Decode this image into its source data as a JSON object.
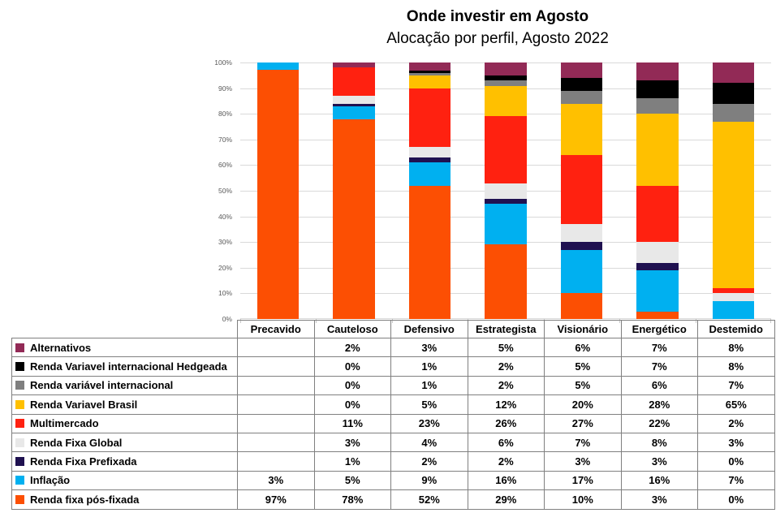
{
  "header": {
    "title": "Onde investir em Agosto",
    "subtitle": "Alocação por perfil, Agosto 2022"
  },
  "colors": {
    "gridline": "#d9d9d9",
    "axis_label": "#595959",
    "table_border": "#808080"
  },
  "chart_data": {
    "type": "bar",
    "stacked": true,
    "stacked_to_100_percent": true,
    "title": "Onde investir em Agosto",
    "subtitle": "Alocação por perfil, Agosto 2022",
    "categories": [
      "Precavido",
      "Cauteloso",
      "Defensivo",
      "Estrategista",
      "Visionário",
      "Energético",
      "Destemido"
    ],
    "y_axis": {
      "min": 0,
      "max": 100,
      "tick_step": 10,
      "tick_labels": [
        "0%",
        "10%",
        "20%",
        "30%",
        "40%",
        "50%",
        "60%",
        "70%",
        "80%",
        "90%",
        "100%"
      ],
      "grid": true
    },
    "legend_position": "left-of-table-rows",
    "series": [
      {
        "name": "Alternativos",
        "color": "#922a56",
        "values": [
          0,
          2,
          3,
          5,
          6,
          7,
          8
        ]
      },
      {
        "name": "Renda Variavel internacional Hedgeada",
        "color": "#000000",
        "values": [
          0,
          0,
          1,
          2,
          5,
          7,
          8
        ]
      },
      {
        "name": "Renda variável internacional",
        "color": "#7f7f7f",
        "values": [
          0,
          0,
          1,
          2,
          5,
          6,
          7
        ]
      },
      {
        "name": "Renda Variavel Brasil",
        "color": "#ffc000",
        "values": [
          0,
          0,
          5,
          12,
          20,
          28,
          65
        ]
      },
      {
        "name": "Multimercado",
        "color": "#ff2110",
        "values": [
          0,
          11,
          23,
          26,
          27,
          22,
          2
        ]
      },
      {
        "name": "Renda Fixa Global",
        "color": "#e8e8e8",
        "values": [
          0,
          3,
          4,
          6,
          7,
          8,
          3
        ]
      },
      {
        "name": "Renda Fixa Prefixada",
        "color": "#1f1150",
        "values": [
          0,
          1,
          2,
          2,
          3,
          3,
          0
        ]
      },
      {
        "name": "Inflação",
        "color": "#00b0f0",
        "values": [
          3,
          5,
          9,
          16,
          17,
          16,
          7
        ]
      },
      {
        "name": "Renda fixa pós-fixada",
        "color": "#fc4f03",
        "values": [
          97,
          78,
          52,
          29,
          10,
          3,
          0
        ]
      }
    ]
  },
  "table": {
    "columns": [
      "Precavido",
      "Cauteloso",
      "Defensivo",
      "Estrategista",
      "Visionário",
      "Energético",
      "Destemido"
    ],
    "rows": [
      {
        "label": "Alternativos",
        "color": "#922a56",
        "cells": [
          "",
          "2%",
          "3%",
          "5%",
          "6%",
          "7%",
          "8%"
        ]
      },
      {
        "label": "Renda Variavel internacional Hedgeada",
        "color": "#000000",
        "cells": [
          "",
          "0%",
          "1%",
          "2%",
          "5%",
          "7%",
          "8%"
        ]
      },
      {
        "label": "Renda variável internacional",
        "color": "#7f7f7f",
        "cells": [
          "",
          "0%",
          "1%",
          "2%",
          "5%",
          "6%",
          "7%"
        ]
      },
      {
        "label": "Renda Variavel Brasil",
        "color": "#ffc000",
        "cells": [
          "",
          "0%",
          "5%",
          "12%",
          "20%",
          "28%",
          "65%"
        ]
      },
      {
        "label": "Multimercado",
        "color": "#ff2110",
        "cells": [
          "",
          "11%",
          "23%",
          "26%",
          "27%",
          "22%",
          "2%"
        ]
      },
      {
        "label": "Renda Fixa Global",
        "color": "#e8e8e8",
        "cells": [
          "",
          "3%",
          "4%",
          "6%",
          "7%",
          "8%",
          "3%"
        ]
      },
      {
        "label": "Renda Fixa Prefixada",
        "color": "#1f1150",
        "cells": [
          "",
          "1%",
          "2%",
          "2%",
          "3%",
          "3%",
          "0%"
        ]
      },
      {
        "label": "Inflação",
        "color": "#00b0f0",
        "cells": [
          "3%",
          "5%",
          "9%",
          "16%",
          "17%",
          "16%",
          "7%"
        ]
      },
      {
        "label": "Renda fixa pós-fixada",
        "color": "#fc4f03",
        "cells": [
          "97%",
          "78%",
          "52%",
          "29%",
          "10%",
          "3%",
          "0%"
        ]
      }
    ]
  }
}
